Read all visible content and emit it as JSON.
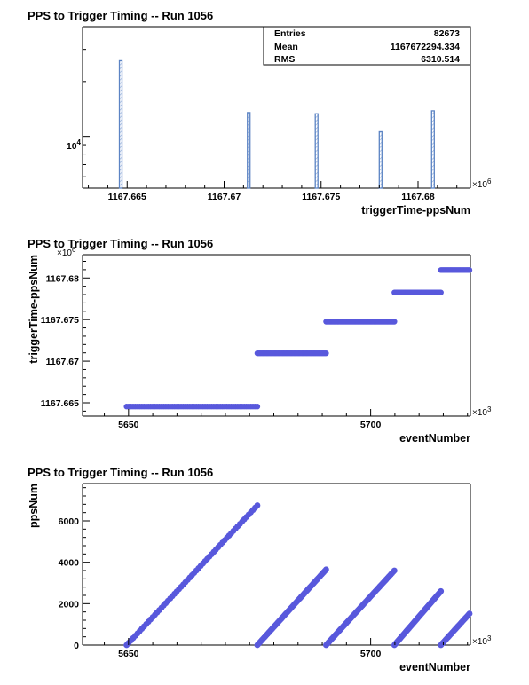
{
  "chart_data": [
    {
      "type": "bar",
      "title": "PPS to Trigger Timing -- Run 1056",
      "xlabel": "triggerTime-ppsNum",
      "ylabel": "",
      "x_exponent": "×10",
      "x_exponent_power": "6",
      "x_ticks": [
        "1167.665",
        "1167.67",
        "1167.675",
        "1167.68"
      ],
      "x_tick_values": [
        1167.665,
        1167.67,
        1167.675,
        1167.68
      ],
      "xlim": [
        1167.6627,
        1167.6827
      ],
      "y_scale": "log",
      "ylim": [
        5200,
        40000
      ],
      "y_ticks": [
        {
          "base": "10",
          "power": "4",
          "value": 10000
        }
      ],
      "bins": [
        {
          "x": 1167.66465,
          "value": 26000
        },
        {
          "x": 1167.67125,
          "value": 13500
        },
        {
          "x": 1167.67475,
          "value": 13300
        },
        {
          "x": 1167.67805,
          "value": 10600
        },
        {
          "x": 1167.68075,
          "value": 13800
        }
      ],
      "stats": {
        "entries_label": "Entries",
        "entries_value": "82673",
        "mean_label": "Mean",
        "mean_value": "1167672294.334",
        "rms_label": "RMS",
        "rms_value": "6310.514"
      },
      "grid": false,
      "colors": {
        "bar_outline": "#5c84c4",
        "bar_hatch": "#8aa8d8"
      }
    },
    {
      "type": "scatter",
      "title": "PPS to Trigger Timing -- Run 1056",
      "xlabel": "eventNumber",
      "ylabel": "triggerTime-ppsNum",
      "x_exponent": "×10",
      "x_exponent_power": "3",
      "y_exponent": "×10",
      "y_exponent_power": "6",
      "x_ticks": [
        "5650",
        "5700"
      ],
      "x_tick_values": [
        5650,
        5700
      ],
      "xlim": [
        5640.5,
        5720.6
      ],
      "y_ticks": [
        "1167.665",
        "1167.67",
        "1167.675",
        "1167.68"
      ],
      "y_tick_values": [
        1167.665,
        1167.67,
        1167.675,
        1167.68
      ],
      "ylim": [
        1167.6634,
        1167.6828
      ],
      "segments": [
        {
          "x_start": 5649.6,
          "x_end": 5676.6,
          "y": 1167.66455
        },
        {
          "x_start": 5676.6,
          "x_end": 5690.8,
          "y": 1167.67095
        },
        {
          "x_start": 5690.8,
          "x_end": 5704.9,
          "y": 1167.67475
        },
        {
          "x_start": 5704.9,
          "x_end": 5714.5,
          "y": 1167.67825
        },
        {
          "x_start": 5714.5,
          "x_end": 5728.7,
          "y": 1167.68095
        }
      ],
      "grid": false,
      "colors": {
        "marker": "#5858dc"
      }
    },
    {
      "type": "scatter",
      "title": "PPS to Trigger Timing -- Run 1056",
      "xlabel": "eventNumber",
      "ylabel": "ppsNum",
      "x_exponent": "×10",
      "x_exponent_power": "3",
      "x_ticks": [
        "5650",
        "5700"
      ],
      "x_tick_values": [
        5650,
        5700
      ],
      "xlim": [
        5640.5,
        5720.6
      ],
      "y_ticks": [
        "0",
        "2000",
        "4000",
        "6000"
      ],
      "y_tick_values": [
        0,
        2000,
        4000,
        6000
      ],
      "ylim": [
        0,
        7800
      ],
      "segments": [
        {
          "x_start": 5649.6,
          "x_end": 5676.6,
          "y_start": 0,
          "y_end": 6750
        },
        {
          "x_start": 5676.6,
          "x_end": 5690.8,
          "y_start": 0,
          "y_end": 3650
        },
        {
          "x_start": 5690.8,
          "x_end": 5704.9,
          "y_start": 0,
          "y_end": 3600
        },
        {
          "x_start": 5704.9,
          "x_end": 5714.5,
          "y_start": 0,
          "y_end": 2600
        },
        {
          "x_start": 5714.5,
          "x_end": 5728.7,
          "y_start": 0,
          "y_end": 3650
        }
      ],
      "grid": false,
      "colors": {
        "marker": "#5858dc"
      }
    }
  ]
}
